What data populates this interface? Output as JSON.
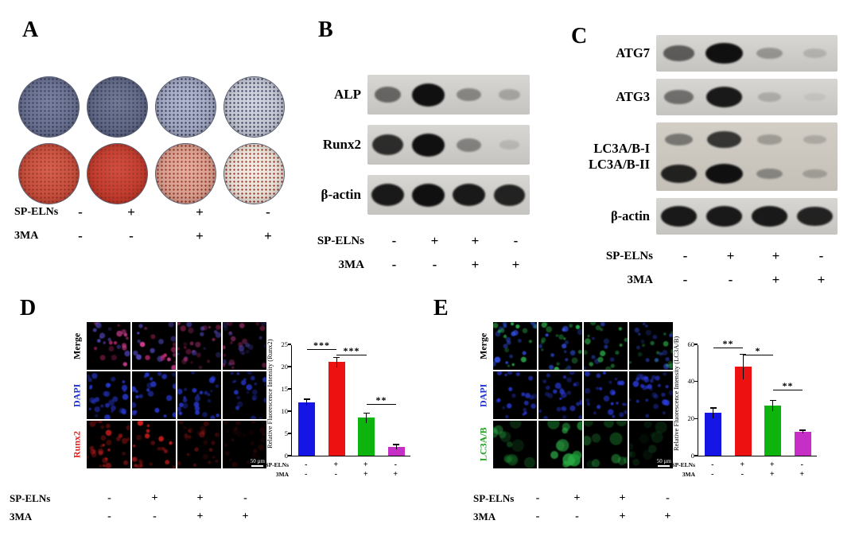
{
  "figure": {
    "background": "#ffffff"
  },
  "treatments": {
    "rows": [
      {
        "name": "SP-ELNs",
        "values": [
          "-",
          "+",
          "+",
          "-"
        ]
      },
      {
        "name": "3MA",
        "values": [
          "-",
          "-",
          "+",
          "+"
        ]
      }
    ]
  },
  "panelA": {
    "label": "A",
    "dish_rows": [
      {
        "colors": [
          "#687093",
          "#5f6787",
          "#a7adc9",
          "#ccd0dd"
        ],
        "speckle": "#2f3657"
      },
      {
        "colors": [
          "#d14a37",
          "#cd3526",
          "#e2a392",
          "#f3ece3"
        ],
        "speckle": "#992d1c"
      }
    ]
  },
  "panelB": {
    "label": "B",
    "blots": [
      {
        "target": "ALP",
        "lanes": [
          0.55,
          1,
          0.38,
          0.22
        ]
      },
      {
        "target": "Runx2",
        "lanes": [
          0.85,
          1,
          0.4,
          0.12
        ]
      },
      {
        "target": "β-actin",
        "lanes": [
          0.95,
          1,
          0.95,
          0.9
        ]
      }
    ]
  },
  "panelC": {
    "label": "C",
    "blots": [
      {
        "target": "ATG7",
        "lanes": [
          0.6,
          1,
          0.3,
          0.15
        ]
      },
      {
        "target": "ATG3",
        "lanes": [
          0.5,
          0.95,
          0.18,
          0.06
        ]
      },
      {
        "target_lines": [
          "LC3A/B-I",
          "LC3A/B-II"
        ],
        "rows": [
          [
            0.45,
            0.8,
            0.25,
            0.18
          ],
          [
            0.9,
            1,
            0.35,
            0.22
          ]
        ]
      },
      {
        "target": "β-actin",
        "lanes": [
          0.95,
          0.95,
          0.95,
          0.9
        ]
      }
    ]
  },
  "panelD": {
    "label": "D",
    "if_grid": {
      "cols": 4,
      "scale_bar": "50 µm",
      "rows": [
        {
          "label": "Merge",
          "color": "#000000",
          "dot_colors": [
            "#e2439b",
            "#c92a74",
            "#5a4fd0"
          ],
          "col_intensity": [
            0.9,
            1,
            0.65,
            0.55
          ],
          "blob": false
        },
        {
          "label": "DAPI",
          "color": "#1c2fd0",
          "dot_colors": [
            "#2a3cdf"
          ],
          "col_intensity": [
            0.9,
            0.95,
            0.9,
            0.85
          ],
          "blob": false
        },
        {
          "label": "Runx2",
          "color": "#e02020",
          "dot_colors": [
            "#dd2020",
            "#b01818"
          ],
          "col_intensity": [
            0.75,
            1,
            0.4,
            0.18
          ],
          "blob": false
        }
      ]
    }
  },
  "panelE": {
    "label": "E",
    "if_grid": {
      "cols": 4,
      "scale_bar": "50 µm",
      "rows": [
        {
          "label": "Merge",
          "color": "#000000",
          "dot_colors": [
            "#3353ea",
            "#2eb44d"
          ],
          "col_intensity": [
            1,
            1,
            0.8,
            0.7
          ],
          "blob": false
        },
        {
          "label": "DAPI",
          "color": "#1c2fd0",
          "dot_colors": [
            "#2a3cdf"
          ],
          "col_intensity": [
            0.9,
            0.9,
            0.9,
            0.85
          ],
          "blob": false
        },
        {
          "label": "LC3A/B",
          "color": "#1ea01e",
          "dot_colors": [
            "#2db348",
            "#1e9636"
          ],
          "col_intensity": [
            0.45,
            1,
            0.5,
            0.2
          ],
          "blob": true
        }
      ]
    }
  },
  "chart_data": [
    {
      "type": "bar",
      "ylabel": "Relative Fluorescence Intensity (Runx2)",
      "ylim": [
        0,
        25
      ],
      "yticks": [
        0,
        5,
        10,
        15,
        20,
        25
      ],
      "values": [
        12,
        21,
        8.5,
        2
      ],
      "errors": [
        0.8,
        1.2,
        1.2,
        0.6
      ],
      "colors": [
        "#1515e6",
        "#ee1111",
        "#0db40d",
        "#c52fc5"
      ],
      "significance": [
        {
          "from": 0,
          "to": 1,
          "label": "***",
          "y": 23.8
        },
        {
          "from": 1,
          "to": 2,
          "label": "***",
          "y": 22.5
        },
        {
          "from": 2,
          "to": 3,
          "label": "**",
          "y": 11.5
        }
      ],
      "x_rows": [
        {
          "name": "SP-ELNs",
          "values": [
            "-",
            "+",
            "+",
            "-"
          ]
        },
        {
          "name": "3MA",
          "values": [
            "-",
            "-",
            "+",
            "+"
          ]
        }
      ]
    },
    {
      "type": "bar",
      "ylabel": "Relative Fluorescence Intensity (LC3A/B)",
      "ylim": [
        0,
        60
      ],
      "yticks": [
        0,
        20,
        40,
        60
      ],
      "values": [
        23,
        48,
        27,
        13
      ],
      "errors": [
        3,
        7,
        3,
        1
      ],
      "colors": [
        "#1515e6",
        "#ee1111",
        "#0db40d",
        "#c52fc5"
      ],
      "significance": [
        {
          "from": 0,
          "to": 1,
          "label": "**",
          "y": 58
        },
        {
          "from": 1,
          "to": 2,
          "label": "*",
          "y": 54
        },
        {
          "from": 2,
          "to": 3,
          "label": "**",
          "y": 35
        }
      ],
      "x_rows": [
        {
          "name": "SP-ELNs",
          "values": [
            "-",
            "+",
            "+",
            "-"
          ]
        },
        {
          "name": "3MA",
          "values": [
            "-",
            "-",
            "+",
            "+"
          ]
        }
      ]
    }
  ]
}
